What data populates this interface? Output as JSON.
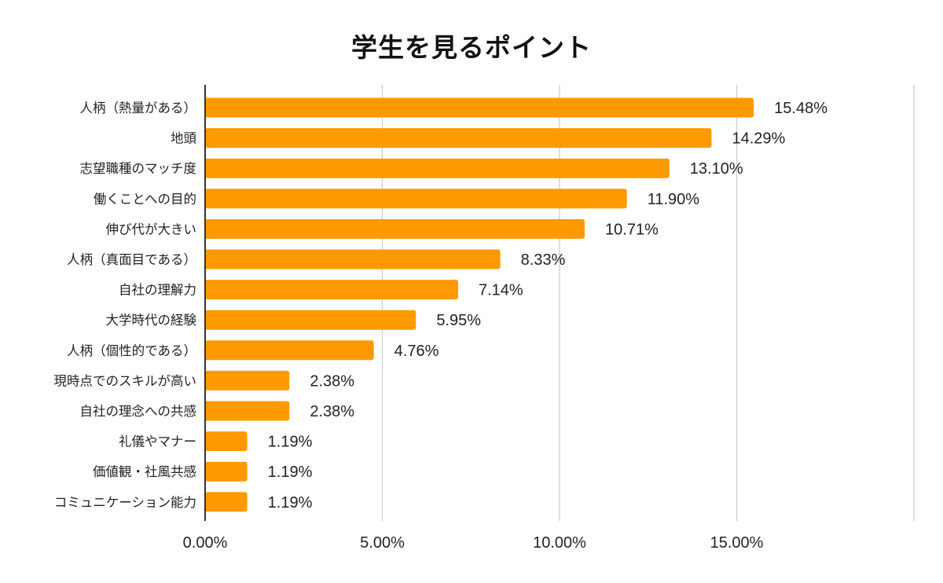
{
  "chart_data": {
    "type": "bar",
    "orientation": "horizontal",
    "title": "学生を見るポイント",
    "xlabel": "",
    "ylabel": "",
    "xlim": [
      0,
      20
    ],
    "grid": true,
    "legend": "none",
    "categories": [
      "人柄（熱量がある）",
      "地頭",
      "志望職種のマッチ度",
      "働くことへの目的",
      "伸び代が大きい",
      "人柄（真面目である）",
      "自社の理解力",
      "大学時代の経験",
      "人柄（個性的である）",
      "現時点でのスキルが高い",
      "自社の理念への共感",
      "礼儀やマナー",
      "価値観・社風共感",
      "コミュニケーション能力"
    ],
    "values": [
      15.48,
      14.29,
      13.1,
      11.9,
      10.71,
      8.33,
      7.14,
      5.95,
      4.76,
      2.38,
      2.38,
      1.19,
      1.19,
      1.19
    ],
    "value_labels": [
      "15.48%",
      "14.29%",
      "13.10%",
      "11.90%",
      "10.71%",
      "8.33%",
      "7.14%",
      "5.95%",
      "4.76%",
      "2.38%",
      "2.38%",
      "1.19%",
      "1.19%",
      "1.19%"
    ],
    "x_ticks": [
      0,
      5,
      10,
      15,
      20
    ],
    "x_tick_labels": [
      "0.00%",
      "5.00%",
      "10.00%",
      "15.00%",
      ""
    ],
    "colors": {
      "bar": "#FF9900",
      "grid": "#CCCCCC",
      "axis": "#333333"
    }
  }
}
